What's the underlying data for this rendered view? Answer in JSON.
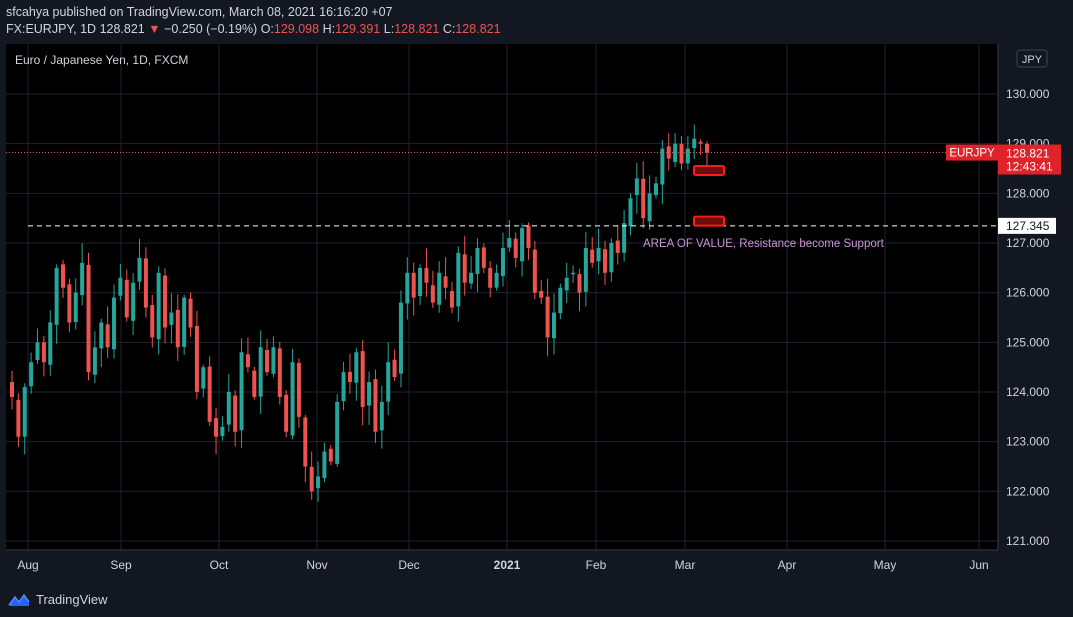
{
  "header": {
    "published_line": "sfcahya published on TradingView.com, March 08, 2021 16:16:20 +07",
    "symbol": "FX:EURJPY, 1D",
    "last": "128.821",
    "change_arrow": "▼",
    "change": "−0.250 (−0.19%)",
    "o_label": "O:",
    "o_value": "129.098",
    "h_label": "H:",
    "h_value": "129.391",
    "l_label": "L:",
    "l_value": "128.821",
    "c_label": "C:",
    "c_value": "128.821"
  },
  "chart_data": {
    "type": "candlestick",
    "title": "Euro / Japanese Yen, 1D, FXCM",
    "currency": "JPY",
    "ylim": [
      120.8,
      130.6
    ],
    "y_ticks": [
      "130.000",
      "129.000",
      "128.000",
      "127.000",
      "126.000",
      "125.000",
      "124.000",
      "123.000",
      "122.000",
      "121.000"
    ],
    "x_ticks": [
      "Aug",
      "Sep",
      "Oct",
      "Nov",
      "Dec",
      "2021",
      "Feb",
      "Mar",
      "Apr",
      "May",
      "Jun"
    ],
    "x_tick_bold": "2021",
    "last_price": {
      "symbol": "EURJPY",
      "value": 128.821,
      "label": "128.821",
      "countdown": "12:43:41"
    },
    "horizontal_line": {
      "value": 127.345,
      "label": "127.345",
      "style": "dashed"
    },
    "annotation": "AREA OF VALUE, Resistance become Support",
    "highlight_values": [
      128.45,
      127.43
    ],
    "colors": {
      "up": "#26a69a",
      "down": "#ef5350",
      "background": "#000000",
      "grid": "#1e2230",
      "annotation": "#ce93d8",
      "box": "#ff1a1a"
    },
    "series": [
      {
        "name": "EURJPY",
        "path": [
          123.9,
          123.1,
          124.1,
          124.6,
          125.0,
          124.6,
          125.4,
          126.5,
          126.1,
          125.4,
          126.0,
          126.6,
          124.4,
          124.9,
          125.4,
          124.9,
          125.9,
          126.3,
          125.5,
          126.2,
          126.7,
          125.7,
          125.1,
          126.4,
          125.3,
          125.6,
          124.9,
          125.9,
          125.3,
          124.0,
          124.5,
          123.4,
          123.1,
          123.3,
          124.0,
          123.2,
          124.8,
          124.5,
          123.9,
          124.9,
          124.4,
          124.9,
          123.9,
          123.2,
          124.6,
          123.5,
          122.5,
          122.0,
          122.3,
          122.8,
          122.6,
          123.8,
          124.4,
          124.2,
          124.8,
          123.7,
          124.2,
          123.2,
          123.8,
          124.6,
          124.3,
          125.8,
          126.4,
          125.9,
          126.5,
          126.2,
          125.8,
          126.4,
          126.1,
          125.7,
          126.8,
          126.2,
          126.4,
          126.9,
          126.5,
          126.1,
          126.4,
          126.9,
          127.1,
          126.7,
          127.3,
          126.9,
          126.0,
          125.9,
          125.1,
          125.6,
          126.1,
          126.3,
          126.4,
          126.0,
          126.9,
          126.6,
          126.9,
          126.4,
          127.0,
          126.8,
          127.4,
          127.9,
          128.3,
          127.5,
          128.0,
          128.2,
          128.9,
          128.7,
          129.0,
          128.6,
          128.9,
          129.1,
          129.0,
          128.82
        ]
      }
    ]
  },
  "footer": {
    "brand": "TradingView"
  }
}
